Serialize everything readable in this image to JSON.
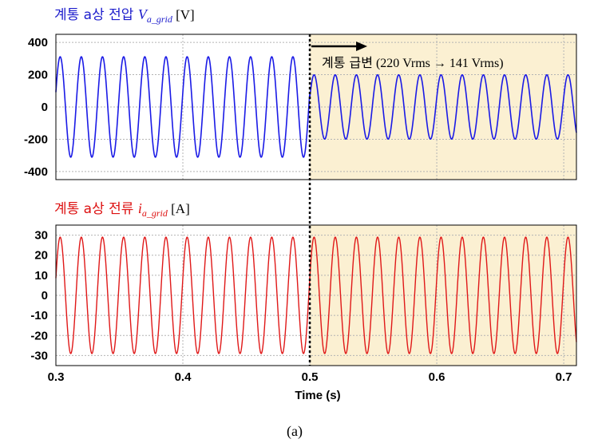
{
  "chart_data": [
    {
      "type": "line",
      "title_parts": {
        "prefix": "계통 a상 전압 ",
        "symbol": "V",
        "subscript": "a_grid",
        "unit": " [V]"
      },
      "title_color": "#1c1ccc",
      "series_color": "#1a1ae6",
      "xlim": [
        0.3,
        0.71
      ],
      "ylim": [
        -450,
        450
      ],
      "yticks": [
        "400",
        "200",
        "0",
        "-200",
        "-400"
      ],
      "ytick_values": [
        400,
        200,
        0,
        -200,
        -400
      ],
      "grid": true,
      "frequency_hz": 60,
      "segments": [
        {
          "from": 0.3,
          "to": 0.5,
          "amplitude": 311
        },
        {
          "from": 0.5,
          "to": 0.71,
          "amplitude": 199
        }
      ],
      "shaded_region": [
        0.5,
        0.71
      ],
      "annotation": {
        "korean": "계통 급변",
        "detail": " (220 Vrms → 141 Vrms)"
      }
    },
    {
      "type": "line",
      "title_parts": {
        "prefix": "계통 a상 전류 ",
        "symbol": "i",
        "subscript": "a_grid",
        "unit": " [A]"
      },
      "title_color": "#dd1010",
      "series_color": "#e01818",
      "xlim": [
        0.3,
        0.71
      ],
      "ylim": [
        -35,
        35
      ],
      "yticks": [
        "30",
        "20",
        "10",
        "0",
        "-10",
        "-20",
        "-30"
      ],
      "ytick_values": [
        30,
        20,
        10,
        0,
        -10,
        -20,
        -30
      ],
      "grid": true,
      "frequency_hz": 60,
      "segments": [
        {
          "from": 0.3,
          "to": 0.71,
          "amplitude": 29
        }
      ],
      "shaded_region": [
        0.5,
        0.71
      ]
    }
  ],
  "x_axis": {
    "ticks": [
      "0.3",
      "0.4",
      "0.5",
      "0.6",
      "0.7"
    ],
    "tick_values": [
      0.3,
      0.4,
      0.5,
      0.6,
      0.7
    ],
    "label": "Time (s)"
  },
  "event_time": 0.5,
  "colors": {
    "shade": "#fbf0d2",
    "grid": "#b4b4b4",
    "event_line": "#000000"
  },
  "caption": "(a)"
}
